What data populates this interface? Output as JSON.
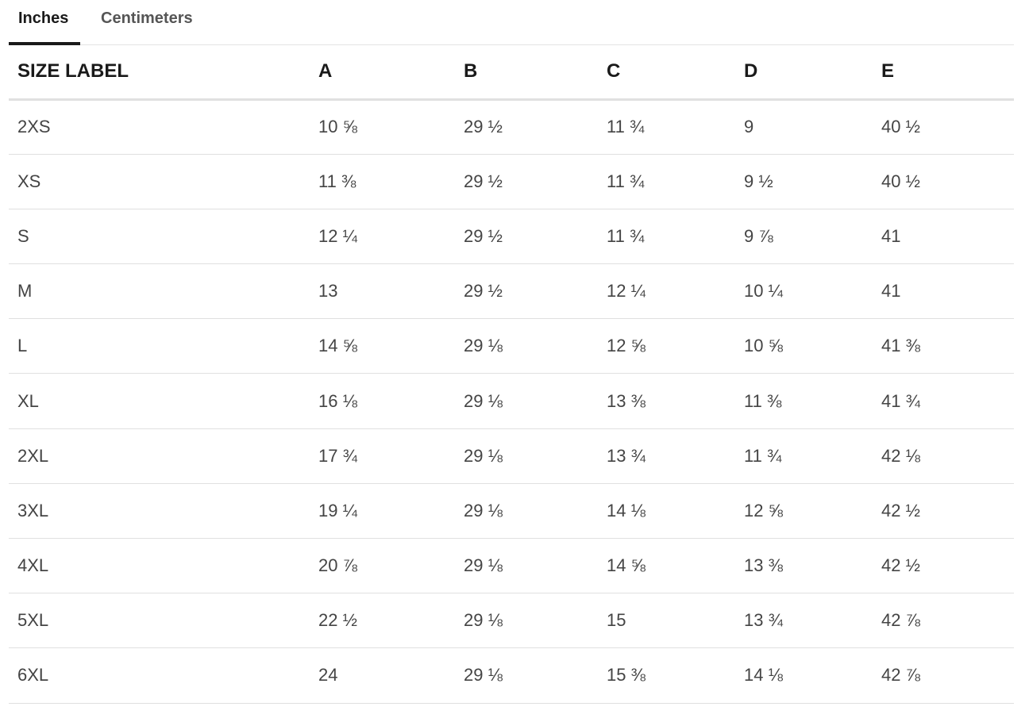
{
  "tabs": [
    {
      "label": "Inches",
      "active": true
    },
    {
      "label": "Centimeters",
      "active": false
    }
  ],
  "table": {
    "headers": [
      "SIZE LABEL",
      "A",
      "B",
      "C",
      "D",
      "E"
    ],
    "rows": [
      [
        "2XS",
        "10 ⅝",
        "29 ½",
        "11 ¾",
        "9",
        "40 ½"
      ],
      [
        "XS",
        "11 ⅜",
        "29 ½",
        "11 ¾",
        "9 ½",
        "40 ½"
      ],
      [
        "S",
        "12 ¼",
        "29 ½",
        "11 ¾",
        "9 ⅞",
        "41"
      ],
      [
        "M",
        "13",
        "29 ½",
        "12 ¼",
        "10 ¼",
        "41"
      ],
      [
        "L",
        "14 ⅝",
        "29 ⅛",
        "12 ⅝",
        "10 ⅝",
        "41 ⅜"
      ],
      [
        "XL",
        "16 ⅛",
        "29 ⅛",
        "13 ⅜",
        "11 ⅜",
        "41 ¾"
      ],
      [
        "2XL",
        "17 ¾",
        "29 ⅛",
        "13 ¾",
        "11 ¾",
        "42 ⅛"
      ],
      [
        "3XL",
        "19 ¼",
        "29 ⅛",
        "14 ⅛",
        "12 ⅝",
        "42 ½"
      ],
      [
        "4XL",
        "20 ⅞",
        "29 ⅛",
        "14 ⅝",
        "13 ⅜",
        "42 ½"
      ],
      [
        "5XL",
        "22 ½",
        "29 ⅛",
        "15",
        "13 ¾",
        "42 ⅞"
      ],
      [
        "6XL",
        "24",
        "29 ⅛",
        "15 ⅜",
        "14 ⅛",
        "42 ⅞"
      ]
    ]
  }
}
